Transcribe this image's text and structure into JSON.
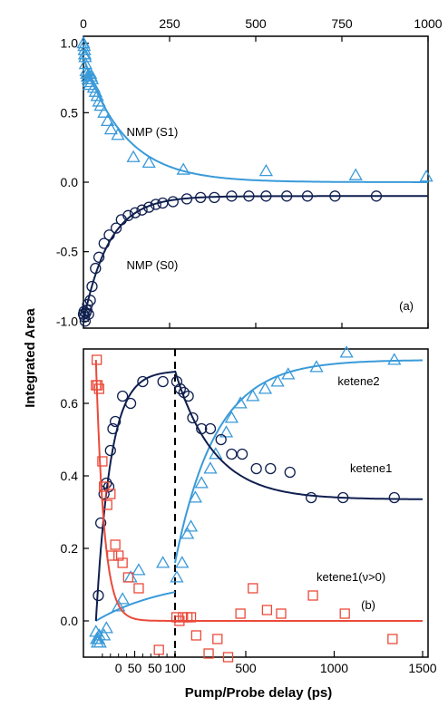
{
  "colors": {
    "light_blue": "#3a9ad9",
    "dark_navy": "#0f1f4f",
    "red": "#ea4a3a"
  },
  "chart_data": [
    {
      "panel_label": "(a)",
      "type": "scatter",
      "ylabel": "Integrated Area",
      "ylim": [
        -1.05,
        1.05
      ],
      "yticks": [
        {
          "value": 1.0,
          "label": "1.0"
        },
        {
          "value": 0.5,
          "label": "0.5"
        },
        {
          "value": 0.0,
          "label": "0.0"
        },
        {
          "value": -0.5,
          "label": "-0.5"
        },
        {
          "value": -1.0,
          "label": "-1.0"
        }
      ],
      "xlim": [
        0,
        1000
      ],
      "xticks_top": [
        {
          "value": 0,
          "label": "0"
        },
        {
          "value": 250,
          "label": "250"
        },
        {
          "value": 500,
          "label": "500"
        },
        {
          "value": 750,
          "label": "750"
        },
        {
          "value": 1000,
          "label": "1000"
        }
      ],
      "series": [
        {
          "name": "NMP (S1)",
          "marker": "triangle",
          "color": "#3a9ad9",
          "label_at": {
            "x": 125,
            "y": 0.36
          },
          "points": [
            [
              0,
              1.0
            ],
            [
              2,
              0.98
            ],
            [
              3,
              0.95
            ],
            [
              4,
              0.92
            ],
            [
              5,
              0.9
            ],
            [
              6,
              0.85
            ],
            [
              8,
              0.8
            ],
            [
              10,
              0.78
            ],
            [
              12,
              0.76
            ],
            [
              14,
              0.74
            ],
            [
              16,
              0.72
            ],
            [
              18,
              0.7
            ],
            [
              20,
              0.78
            ],
            [
              22,
              0.76
            ],
            [
              25,
              0.74
            ],
            [
              30,
              0.68
            ],
            [
              35,
              0.65
            ],
            [
              40,
              0.62
            ],
            [
              45,
              0.58
            ],
            [
              50,
              0.55
            ],
            [
              60,
              0.5
            ],
            [
              70,
              0.44
            ],
            [
              80,
              0.38
            ],
            [
              100,
              0.34
            ],
            [
              145,
              0.18
            ],
            [
              190,
              0.14
            ],
            [
              290,
              0.09
            ],
            [
              530,
              0.08
            ],
            [
              790,
              0.05
            ],
            [
              995,
              0.04
            ]
          ],
          "fit": {
            "model": "exp",
            "A": 0.9,
            "tau": 120,
            "offset": 0.0,
            "x_from": 0,
            "x_to": 1000
          }
        },
        {
          "name": "NMP (S0)",
          "marker": "circle",
          "color": "#0f1f4f",
          "label_at": {
            "x": 125,
            "y": -0.6
          },
          "points": [
            [
              0,
              -0.95
            ],
            [
              2,
              -0.93
            ],
            [
              3,
              -0.97
            ],
            [
              5,
              -1.0
            ],
            [
              7,
              -0.94
            ],
            [
              10,
              -0.92
            ],
            [
              12,
              -0.88
            ],
            [
              15,
              -0.95
            ],
            [
              20,
              -0.85
            ],
            [
              25,
              -0.75
            ],
            [
              35,
              -0.62
            ],
            [
              45,
              -0.54
            ],
            [
              60,
              -0.44
            ],
            [
              75,
              -0.38
            ],
            [
              95,
              -0.33
            ],
            [
              110,
              -0.27
            ],
            [
              130,
              -0.24
            ],
            [
              150,
              -0.22
            ],
            [
              170,
              -0.2
            ],
            [
              190,
              -0.18
            ],
            [
              210,
              -0.16
            ],
            [
              230,
              -0.15
            ],
            [
              260,
              -0.14
            ],
            [
              300,
              -0.12
            ],
            [
              340,
              -0.11
            ],
            [
              380,
              -0.11
            ],
            [
              430,
              -0.1
            ],
            [
              480,
              -0.1
            ],
            [
              530,
              -0.1
            ],
            [
              590,
              -0.1
            ],
            [
              650,
              -0.1
            ],
            [
              730,
              -0.1
            ],
            [
              850,
              -0.1
            ]
          ],
          "fit": {
            "model": "exp",
            "A": -0.9,
            "tau": 75,
            "offset": -0.1,
            "x_from": 0,
            "x_to": 1000
          }
        }
      ]
    },
    {
      "panel_label": "(b)",
      "type": "scatter",
      "xlabel": "Pump/Probe delay (ps)",
      "ylim": [
        -0.1,
        0.75
      ],
      "yticks": [
        {
          "value": 0.0,
          "label": "0.0"
        },
        {
          "value": 0.2,
          "label": "0.2"
        },
        {
          "value": 0.4,
          "label": "0.4"
        },
        {
          "value": 0.6,
          "label": "0.6"
        }
      ],
      "x_axis": "broken: linear 0-100 ps left of dashed line, linear 100-1500 ps right of dashed line",
      "xticks": [
        {
          "value": 50,
          "label": "50"
        },
        {
          "value": 100,
          "label": "100"
        },
        {
          "value": 500,
          "label": "500"
        },
        {
          "value": 1000,
          "label": "1000"
        },
        {
          "value": 1500,
          "label": "1500"
        }
      ],
      "x_extra_tick_labels": [
        {
          "value": 30,
          "label": "0"
        },
        {
          "value": 75,
          "label": "50"
        }
      ],
      "x_minor_ticks": [
        10,
        20,
        30,
        40,
        60,
        70,
        80,
        90
      ],
      "break_at": 100,
      "series": [
        {
          "name": "ketene2",
          "marker": "triangle",
          "color": "#3a9ad9",
          "label_at": {
            "x": 1020,
            "y": 0.66
          },
          "points": [
            [
              2,
              -0.03
            ],
            [
              3,
              -0.05
            ],
            [
              4,
              -0.06
            ],
            [
              5,
              -0.05
            ],
            [
              6,
              -0.04
            ],
            [
              7,
              -0.06
            ],
            [
              12,
              -0.04
            ],
            [
              15,
              -0.02
            ],
            [
              30,
              0.04
            ],
            [
              35,
              0.06
            ],
            [
              45,
              0.12
            ],
            [
              55,
              0.14
            ],
            [
              85,
              0.16
            ],
            [
              110,
              0.12
            ],
            [
              140,
              0.16
            ],
            [
              170,
              0.24
            ],
            [
              190,
              0.26
            ],
            [
              215,
              0.34
            ],
            [
              250,
              0.38
            ],
            [
              300,
              0.42
            ],
            [
              330,
              0.46
            ],
            [
              390,
              0.52
            ],
            [
              420,
              0.56
            ],
            [
              470,
              0.6
            ],
            [
              540,
              0.62
            ],
            [
              610,
              0.64
            ],
            [
              680,
              0.66
            ],
            [
              740,
              0.68
            ],
            [
              900,
              0.7
            ],
            [
              1070,
              0.74
            ],
            [
              1340,
              0.72
            ]
          ],
          "fit_segments": [
            {
              "model": "rise",
              "A": 0.12,
              "tau": 90,
              "offset": 0.0,
              "x_from": 2,
              "x_to": 100
            },
            {
              "model": "rise_shift",
              "A": 0.72,
              "tau": 230,
              "x0": 100,
              "y0": 0.16,
              "x_from": 100,
              "x_to": 1500
            }
          ]
        },
        {
          "name": "ketene1",
          "marker": "circle",
          "color": "#0f1f4f",
          "label_at": {
            "x": 1090,
            "y": 0.42
          },
          "points": [
            [
              5,
              0.07
            ],
            [
              8,
              0.27
            ],
            [
              12,
              0.35
            ],
            [
              15,
              0.38
            ],
            [
              18,
              0.37
            ],
            [
              20,
              0.47
            ],
            [
              23,
              0.53
            ],
            [
              26,
              0.55
            ],
            [
              35,
              0.62
            ],
            [
              45,
              0.6
            ],
            [
              60,
              0.66
            ],
            [
              85,
              0.66
            ],
            [
              110,
              0.66
            ],
            [
              130,
              0.64
            ],
            [
              150,
              0.63
            ],
            [
              175,
              0.62
            ],
            [
              200,
              0.56
            ],
            [
              250,
              0.53
            ],
            [
              300,
              0.53
            ],
            [
              360,
              0.5
            ],
            [
              420,
              0.46
            ],
            [
              480,
              0.46
            ],
            [
              560,
              0.42
            ],
            [
              640,
              0.42
            ],
            [
              750,
              0.41
            ],
            [
              870,
              0.34
            ],
            [
              1050,
              0.34
            ],
            [
              1340,
              0.34
            ]
          ],
          "fit_segments": [
            {
              "model": "rise",
              "A": 0.69,
              "tau": 18,
              "offset": 0.0,
              "x_from": 2,
              "x_to": 100
            },
            {
              "model": "decay_shift",
              "A": 0.35,
              "tau": 220,
              "x0": 100,
              "y0": 0.69,
              "offset": 0.335,
              "x_from": 100,
              "x_to": 1500
            }
          ]
        },
        {
          "name": "ketene1(ν>0)",
          "marker": "square",
          "color": "#ea4a3a",
          "label_at": {
            "x": 900,
            "y": 0.12
          },
          "points": [
            [
              2,
              0.65
            ],
            [
              3,
              0.72
            ],
            [
              4,
              0.65
            ],
            [
              6,
              0.64
            ],
            [
              10,
              0.44
            ],
            [
              12,
              0.37
            ],
            [
              16,
              0.32
            ],
            [
              20,
              0.35
            ],
            [
              22,
              0.18
            ],
            [
              26,
              0.21
            ],
            [
              30,
              0.18
            ],
            [
              35,
              0.16
            ],
            [
              42,
              0.12
            ],
            [
              55,
              0.09
            ],
            [
              80,
              -0.08
            ],
            [
              108,
              0.01
            ],
            [
              125,
              0.0
            ],
            [
              145,
              0.01
            ],
            [
              170,
              0.01
            ],
            [
              190,
              0.01
            ],
            [
              220,
              -0.04
            ],
            [
              290,
              -0.09
            ],
            [
              340,
              -0.05
            ],
            [
              400,
              -0.1
            ],
            [
              470,
              0.02
            ],
            [
              540,
              0.09
            ],
            [
              620,
              0.03
            ],
            [
              700,
              0.02
            ],
            [
              880,
              0.07
            ],
            [
              1060,
              0.02
            ],
            [
              1330,
              -0.05
            ]
          ],
          "fit_segments": [
            {
              "model": "exp",
              "A": 0.72,
              "tau": 10,
              "offset": 0.0,
              "x_from": 2,
              "x_to": 100
            },
            {
              "model": "flat",
              "value": 0.0,
              "x_from": 100,
              "x_to": 1500
            }
          ]
        }
      ]
    }
  ]
}
